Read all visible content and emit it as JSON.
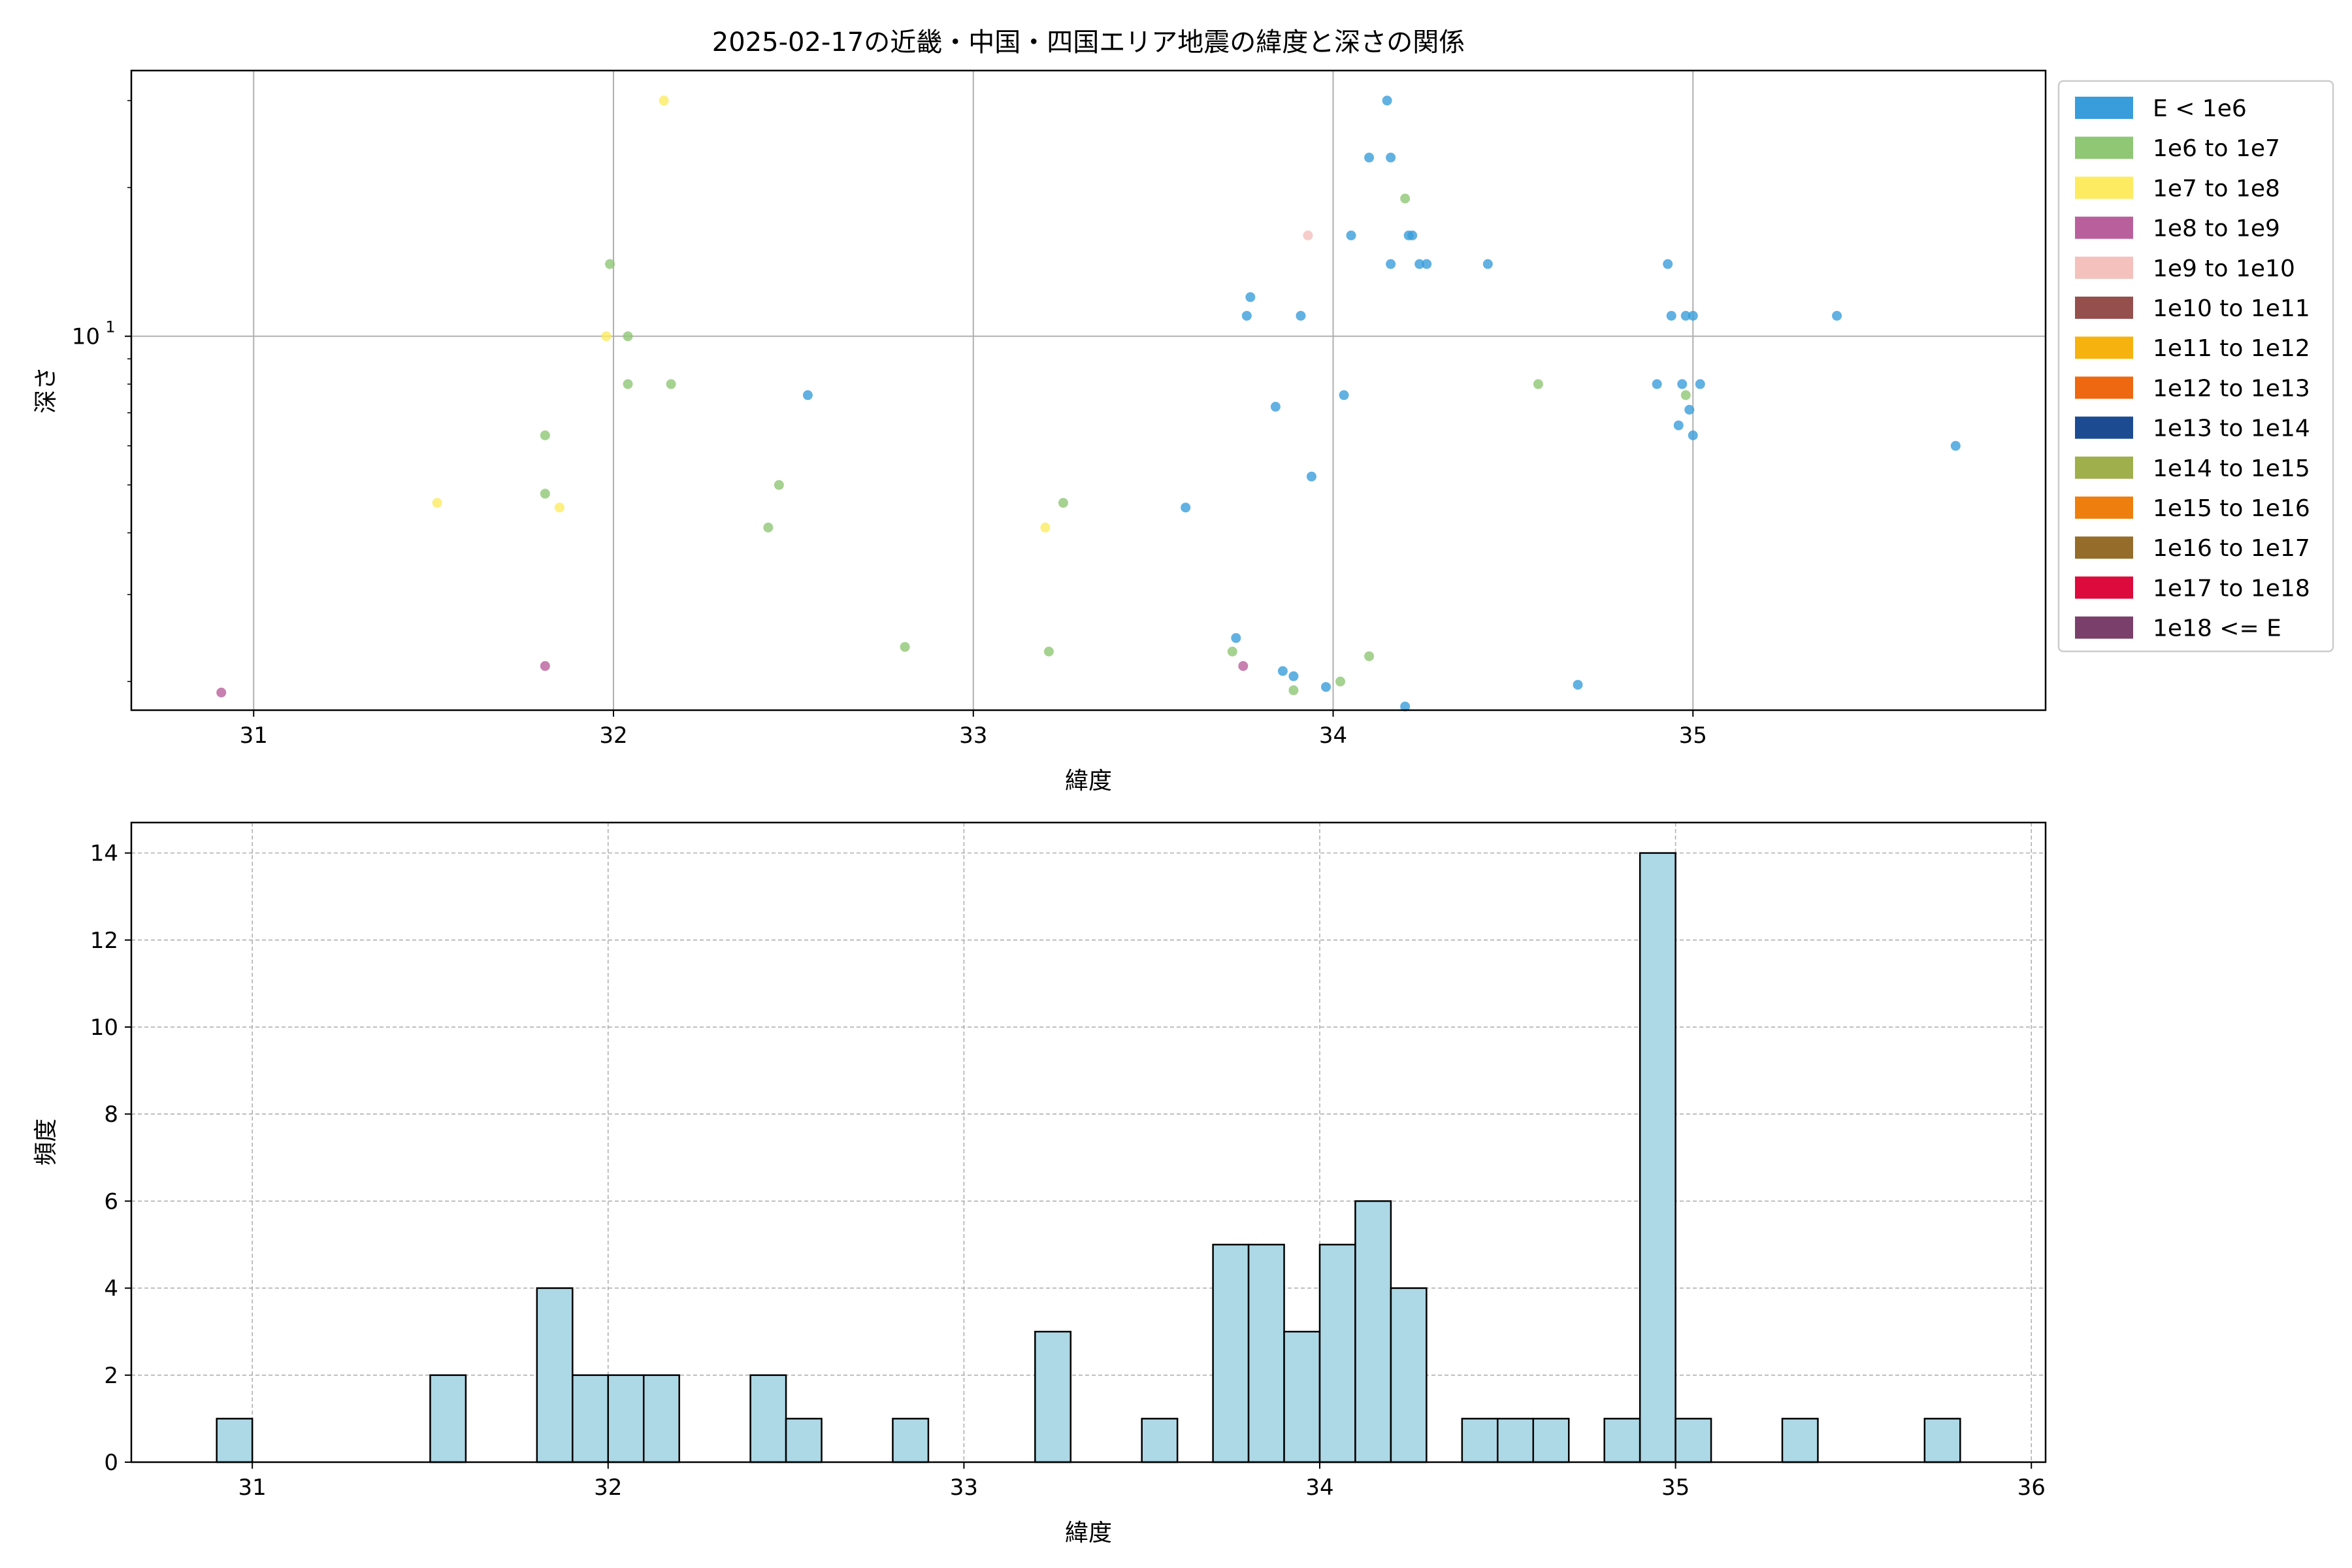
{
  "chart_data": [
    {
      "type": "scatter",
      "title": "2025-02-17の近畿・中国・四国エリア地震の緯度と深さの関係",
      "xlabel": "緯度",
      "ylabel": "深さ",
      "xlim": [
        30.66,
        35.98
      ],
      "ylim": [
        1.75,
        34.5
      ],
      "y_scale": "log",
      "x_ticks": [
        "31",
        "32",
        "33",
        "34",
        "35"
      ],
      "y_ticks": [
        {
          "value": 10,
          "label": "10",
          "exp": "1"
        }
      ],
      "y_minor_ticks": [
        2,
        3,
        4,
        5,
        6,
        7,
        8,
        9,
        20,
        30
      ],
      "grid": true,
      "legend_position": "outside-right",
      "legend": [
        {
          "label": "E < 1e6",
          "color": "#3a9ddb"
        },
        {
          "label": "1e6 to 1e7",
          "color": "#8fc774"
        },
        {
          "label": "1e7 to 1e8",
          "color": "#fdeb62"
        },
        {
          "label": "1e8 to 1e9",
          "color": "#b9609c"
        },
        {
          "label": "1e9 to 1e10",
          "color": "#f4c1bd"
        },
        {
          "label": "1e10 to 1e11",
          "color": "#95504d"
        },
        {
          "label": "1e11 to 1e12",
          "color": "#f6b20f"
        },
        {
          "label": "1e12 to 1e13",
          "color": "#ee6811"
        },
        {
          "label": "1e13 to 1e14",
          "color": "#1d4b92"
        },
        {
          "label": "1e14 to 1e15",
          "color": "#9eaf4c"
        },
        {
          "label": "1e15 to 1e16",
          "color": "#ee7f0e"
        },
        {
          "label": "1e16 to 1e17",
          "color": "#956c2a"
        },
        {
          "label": "1e17 to 1e18",
          "color": "#dc0a3d"
        },
        {
          "label": "1e18 <= E",
          "color": "#7a3f6b"
        }
      ],
      "series": [
        {
          "color": "#3a9ddb",
          "points": [
            [
              32.54,
              7.6
            ],
            [
              33.59,
              4.5
            ],
            [
              33.73,
              2.45
            ],
            [
              33.76,
              11.0
            ],
            [
              33.77,
              12.0
            ],
            [
              33.84,
              7.2
            ],
            [
              33.86,
              2.1
            ],
            [
              33.89,
              2.05
            ],
            [
              33.91,
              11.0
            ],
            [
              33.94,
              5.2
            ],
            [
              33.98,
              1.95
            ],
            [
              34.03,
              7.6
            ],
            [
              34.05,
              16.0
            ],
            [
              34.1,
              23.0
            ],
            [
              34.15,
              30.0
            ],
            [
              34.16,
              23.0
            ],
            [
              34.16,
              14.0
            ],
            [
              34.21,
              16.0
            ],
            [
              34.22,
              16.0
            ],
            [
              34.24,
              14.0
            ],
            [
              34.26,
              14.0
            ],
            [
              34.43,
              14.0
            ],
            [
              34.68,
              1.97
            ],
            [
              34.2,
              1.78
            ],
            [
              34.9,
              8.0
            ],
            [
              34.93,
              14.0
            ],
            [
              34.94,
              11.0
            ],
            [
              34.96,
              6.6
            ],
            [
              34.97,
              8.0
            ],
            [
              34.98,
              11.0
            ],
            [
              34.99,
              7.1
            ],
            [
              35.0,
              6.3
            ],
            [
              35.0,
              11.0
            ],
            [
              35.02,
              8.0
            ],
            [
              35.4,
              11.0
            ],
            [
              35.73,
              6.0
            ]
          ]
        },
        {
          "color": "#8fc774",
          "points": [
            [
              31.81,
              6.3
            ],
            [
              31.81,
              4.8
            ],
            [
              31.99,
              14.0
            ],
            [
              32.04,
              10.0
            ],
            [
              32.04,
              8.0
            ],
            [
              32.16,
              8.0
            ],
            [
              32.43,
              4.1
            ],
            [
              32.46,
              5.0
            ],
            [
              32.81,
              2.35
            ],
            [
              33.21,
              2.3
            ],
            [
              33.25,
              4.6
            ],
            [
              33.72,
              2.3
            ],
            [
              33.89,
              1.92
            ],
            [
              34.02,
              2.0
            ],
            [
              34.1,
              2.25
            ],
            [
              34.2,
              19.0
            ],
            [
              34.57,
              8.0
            ],
            [
              34.98,
              7.6
            ]
          ]
        },
        {
          "color": "#fdeb62",
          "points": [
            [
              31.51,
              4.6
            ],
            [
              31.85,
              4.5
            ],
            [
              31.98,
              10.0
            ],
            [
              32.14,
              30.0
            ],
            [
              33.2,
              4.1
            ]
          ]
        },
        {
          "color": "#b9609c",
          "points": [
            [
              30.91,
              1.9
            ],
            [
              31.81,
              2.15
            ],
            [
              33.75,
              2.15
            ]
          ]
        },
        {
          "color": "#f4c1bd",
          "points": [
            [
              33.93,
              16.0
            ]
          ]
        }
      ]
    },
    {
      "type": "bar",
      "title": "",
      "xlabel": "緯度",
      "ylabel": "頻度",
      "xlim": [
        30.66,
        36.04
      ],
      "ylim": [
        0,
        14.7
      ],
      "x_ticks": [
        "31",
        "32",
        "33",
        "34",
        "35",
        "36"
      ],
      "y_ticks": [
        "0",
        "2",
        "4",
        "6",
        "8",
        "10",
        "12",
        "14"
      ],
      "grid": true,
      "bar_color": "#add8e6",
      "bin_start": 30.9,
      "bin_width": 0.1,
      "values": [
        1,
        0,
        0,
        0,
        0,
        0,
        2,
        0,
        0,
        4,
        2,
        2,
        2,
        0,
        0,
        2,
        1,
        0,
        0,
        1,
        0,
        0,
        0,
        3,
        0,
        0,
        1,
        0,
        5,
        5,
        3,
        5,
        6,
        4,
        0,
        1,
        1,
        1,
        0,
        1,
        14,
        1,
        0,
        0,
        1,
        0,
        0,
        0,
        1
      ]
    }
  ]
}
